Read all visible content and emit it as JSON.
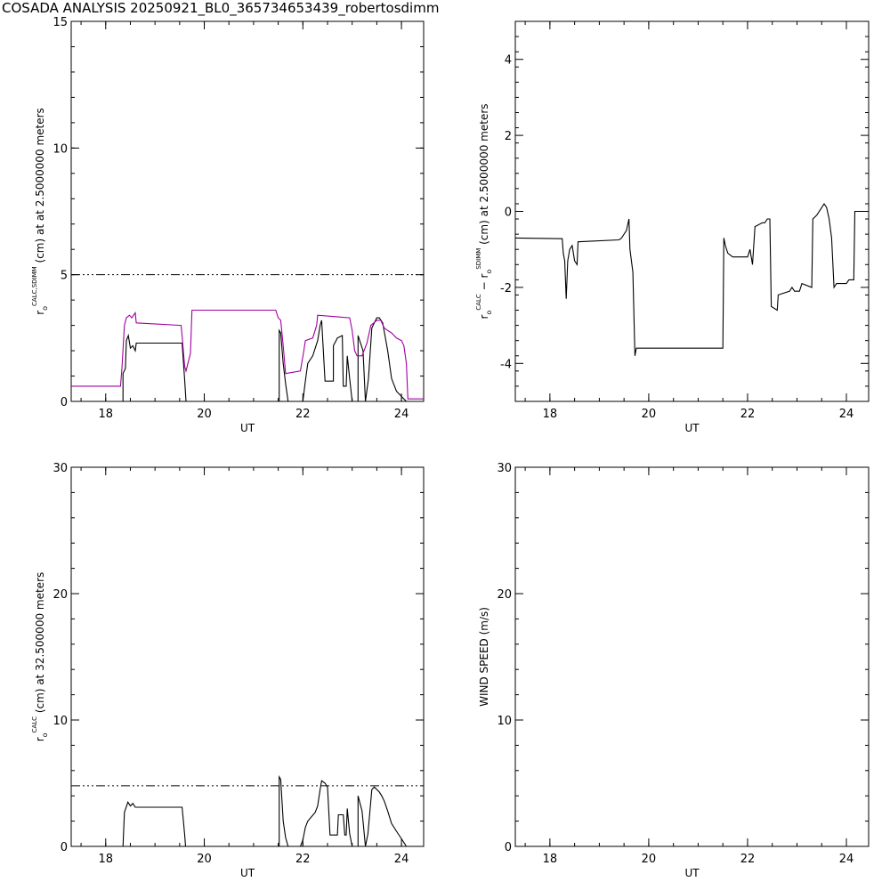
{
  "title": "COSADA ANALYSIS 20250921_BL0_365734653439_robertosdimm",
  "chart_data": [
    {
      "id": "p1",
      "type": "line",
      "xlabel": "UT",
      "ylabel_parts": [
        "r",
        "o",
        "CALC,SDIMM",
        "(cm) at  at 2.5000000 meters"
      ],
      "xlim": [
        17.3,
        24.45
      ],
      "ylim": [
        0,
        15
      ],
      "xticks": [
        18,
        20,
        22,
        24
      ],
      "yticks": [
        0,
        5,
        10,
        15
      ],
      "ref_line": 5,
      "series": [
        {
          "color": "#000000",
          "points": [
            [
              18.3,
              0
            ],
            [
              18.35,
              0
            ],
            [
              18.35,
              1.1
            ],
            [
              18.4,
              1.3
            ],
            [
              18.42,
              2.4
            ],
            [
              18.46,
              2.6
            ],
            [
              18.5,
              2.1
            ],
            [
              18.55,
              2.2
            ],
            [
              18.6,
              2.0
            ],
            [
              18.62,
              2.3
            ],
            [
              19.55,
              2.3
            ],
            [
              19.6,
              0.9
            ],
            [
              19.63,
              0
            ],
            [
              21.52,
              0
            ],
            [
              21.52,
              2.8
            ],
            [
              21.55,
              2.7
            ],
            [
              21.6,
              1.5
            ],
            [
              21.65,
              0.7
            ],
            [
              21.7,
              0
            ],
            [
              21.95,
              0
            ],
            [
              22.0,
              0
            ],
            [
              22.05,
              0.8
            ],
            [
              22.1,
              1.5
            ],
            [
              22.2,
              1.8
            ],
            [
              22.3,
              2.4
            ],
            [
              22.35,
              3.0
            ],
            [
              22.38,
              3.2
            ],
            [
              22.45,
              0.8
            ],
            [
              22.62,
              0.8
            ],
            [
              22.62,
              2.2
            ],
            [
              22.7,
              2.5
            ],
            [
              22.8,
              2.6
            ],
            [
              22.82,
              0.6
            ],
            [
              22.88,
              0.6
            ],
            [
              22.9,
              1.8
            ],
            [
              22.95,
              0.9
            ],
            [
              23.0,
              0
            ],
            [
              23.12,
              0
            ],
            [
              23.12,
              2.6
            ],
            [
              23.22,
              2.0
            ],
            [
              23.27,
              0
            ],
            [
              23.33,
              0.9
            ],
            [
              23.4,
              2.9
            ],
            [
              23.5,
              3.3
            ],
            [
              23.55,
              3.3
            ],
            [
              23.62,
              3.1
            ],
            [
              23.72,
              2.0
            ],
            [
              23.8,
              0.9
            ],
            [
              23.9,
              0.4
            ],
            [
              23.95,
              0.3
            ],
            [
              24.05,
              0.1
            ],
            [
              24.1,
              0
            ]
          ]
        },
        {
          "color": "#a000a0",
          "points": [
            [
              17.3,
              0.6
            ],
            [
              18.3,
              0.6
            ],
            [
              18.33,
              1.3
            ],
            [
              18.38,
              3.0
            ],
            [
              18.42,
              3.3
            ],
            [
              18.48,
              3.4
            ],
            [
              18.53,
              3.3
            ],
            [
              18.6,
              3.5
            ],
            [
              18.62,
              3.1
            ],
            [
              19.53,
              3.0
            ],
            [
              19.55,
              2.6
            ],
            [
              19.6,
              1.4
            ],
            [
              19.63,
              1.2
            ],
            [
              19.72,
              1.9
            ],
            [
              19.75,
              3.6
            ],
            [
              21.45,
              3.6
            ],
            [
              21.5,
              3.3
            ],
            [
              21.55,
              3.2
            ],
            [
              21.6,
              2.2
            ],
            [
              21.65,
              1.1
            ],
            [
              21.95,
              1.2
            ],
            [
              22.02,
              2.0
            ],
            [
              22.05,
              2.4
            ],
            [
              22.2,
              2.5
            ],
            [
              22.28,
              3.0
            ],
            [
              22.3,
              3.4
            ],
            [
              22.95,
              3.3
            ],
            [
              23.0,
              2.8
            ],
            [
              23.05,
              2.0
            ],
            [
              23.1,
              1.8
            ],
            [
              23.2,
              1.8
            ],
            [
              23.3,
              2.3
            ],
            [
              23.38,
              3.0
            ],
            [
              23.5,
              3.2
            ],
            [
              23.58,
              3.2
            ],
            [
              23.65,
              2.9
            ],
            [
              23.72,
              2.8
            ],
            [
              23.8,
              2.7
            ],
            [
              23.9,
              2.5
            ],
            [
              24.0,
              2.4
            ],
            [
              24.05,
              2.2
            ],
            [
              24.1,
              1.5
            ],
            [
              24.13,
              0.1
            ],
            [
              24.45,
              0.1
            ]
          ]
        }
      ]
    },
    {
      "id": "p2",
      "type": "line",
      "xlabel": "UT",
      "ylabel_parts": [
        "r",
        "o",
        "CALC",
        "− r",
        "o",
        "SDIMM",
        "(cm) at 2.5000000 meters"
      ],
      "xlim": [
        17.3,
        24.45
      ],
      "ylim": [
        -5,
        5
      ],
      "xticks": [
        18,
        20,
        22,
        24
      ],
      "yticks": [
        -4,
        -2,
        0,
        2,
        4
      ],
      "series": [
        {
          "color": "#000000",
          "points": [
            [
              17.3,
              -0.7
            ],
            [
              18.25,
              -0.72
            ],
            [
              18.27,
              -1.1
            ],
            [
              18.3,
              -1.3
            ],
            [
              18.33,
              -2.3
            ],
            [
              18.36,
              -1.3
            ],
            [
              18.4,
              -1.0
            ],
            [
              18.45,
              -0.9
            ],
            [
              18.5,
              -1.3
            ],
            [
              18.55,
              -1.4
            ],
            [
              18.57,
              -0.8
            ],
            [
              19.4,
              -0.75
            ],
            [
              19.45,
              -0.7
            ],
            [
              19.55,
              -0.5
            ],
            [
              19.6,
              -0.2
            ],
            [
              19.62,
              -1.0
            ],
            [
              19.68,
              -1.6
            ],
            [
              19.72,
              -3.8
            ],
            [
              19.75,
              -3.6
            ],
            [
              21.5,
              -3.6
            ],
            [
              21.52,
              -0.7
            ],
            [
              21.55,
              -0.9
            ],
            [
              21.6,
              -1.1
            ],
            [
              21.7,
              -1.2
            ],
            [
              22.0,
              -1.2
            ],
            [
              22.05,
              -1.0
            ],
            [
              22.1,
              -1.4
            ],
            [
              22.15,
              -0.4
            ],
            [
              22.3,
              -0.3
            ],
            [
              22.35,
              -0.3
            ],
            [
              22.4,
              -0.2
            ],
            [
              22.45,
              -0.2
            ],
            [
              22.48,
              -2.5
            ],
            [
              22.6,
              -2.6
            ],
            [
              22.62,
              -2.2
            ],
            [
              22.85,
              -2.1
            ],
            [
              22.9,
              -2.0
            ],
            [
              22.95,
              -2.1
            ],
            [
              23.05,
              -2.1
            ],
            [
              23.1,
              -1.9
            ],
            [
              23.3,
              -2.0
            ],
            [
              23.32,
              -0.2
            ],
            [
              23.4,
              -0.1
            ],
            [
              23.5,
              0.1
            ],
            [
              23.55,
              0.2
            ],
            [
              23.6,
              0.1
            ],
            [
              23.65,
              -0.2
            ],
            [
              23.7,
              -0.7
            ],
            [
              23.75,
              -2.0
            ],
            [
              23.8,
              -1.9
            ],
            [
              23.9,
              -1.9
            ],
            [
              24.0,
              -1.9
            ],
            [
              24.05,
              -1.8
            ],
            [
              24.15,
              -1.8
            ],
            [
              24.17,
              0.0
            ],
            [
              24.45,
              0.0
            ]
          ]
        }
      ]
    },
    {
      "id": "p3",
      "type": "line",
      "xlabel": "UT",
      "ylabel_parts": [
        "r",
        "o",
        "CALC",
        "(cm) at 32.500000 meters"
      ],
      "xlim": [
        17.3,
        24.45
      ],
      "ylim": [
        0,
        30
      ],
      "xticks": [
        18,
        20,
        22,
        24
      ],
      "yticks": [
        0,
        10,
        20,
        30
      ],
      "ref_line": 4.8,
      "series": [
        {
          "color": "#000000",
          "points": [
            [
              18.3,
              0
            ],
            [
              18.35,
              0
            ],
            [
              18.38,
              2.7
            ],
            [
              18.45,
              3.5
            ],
            [
              18.5,
              3.2
            ],
            [
              18.55,
              3.4
            ],
            [
              18.6,
              3.1
            ],
            [
              18.62,
              3.1
            ],
            [
              19.55,
              3.1
            ],
            [
              19.6,
              1.0
            ],
            [
              19.62,
              0
            ],
            [
              21.52,
              0
            ],
            [
              21.52,
              5.5
            ],
            [
              21.55,
              5.3
            ],
            [
              21.6,
              2.0
            ],
            [
              21.65,
              0.7
            ],
            [
              21.7,
              0
            ],
            [
              21.95,
              0
            ],
            [
              22.0,
              0.5
            ],
            [
              22.05,
              1.5
            ],
            [
              22.1,
              2.0
            ],
            [
              22.25,
              2.7
            ],
            [
              22.3,
              3.2
            ],
            [
              22.35,
              4.5
            ],
            [
              22.38,
              5.2
            ],
            [
              22.45,
              5.0
            ],
            [
              22.5,
              4.7
            ],
            [
              22.55,
              0.9
            ],
            [
              22.7,
              0.9
            ],
            [
              22.72,
              2.5
            ],
            [
              22.82,
              2.5
            ],
            [
              22.85,
              0.9
            ],
            [
              22.88,
              0.9
            ],
            [
              22.9,
              3.0
            ],
            [
              22.95,
              1.0
            ],
            [
              23.0,
              0
            ],
            [
              23.12,
              0
            ],
            [
              23.12,
              4.0
            ],
            [
              23.2,
              2.8
            ],
            [
              23.27,
              0
            ],
            [
              23.32,
              1.0
            ],
            [
              23.4,
              4.5
            ],
            [
              23.45,
              4.7
            ],
            [
              23.5,
              4.5
            ],
            [
              23.55,
              4.3
            ],
            [
              23.6,
              4.0
            ],
            [
              23.65,
              3.6
            ],
            [
              23.72,
              2.8
            ],
            [
              23.8,
              1.8
            ],
            [
              23.9,
              1.2
            ],
            [
              24.0,
              0.6
            ],
            [
              24.05,
              0.3
            ],
            [
              24.1,
              0
            ]
          ]
        }
      ]
    },
    {
      "id": "p4",
      "type": "line",
      "xlabel": "UT",
      "ylabel_parts": [
        "WIND SPEED (m/s)"
      ],
      "xlim": [
        17.3,
        24.45
      ],
      "ylim": [
        0,
        30
      ],
      "xticks": [
        18,
        20,
        22,
        24
      ],
      "yticks": [
        0,
        10,
        20,
        30
      ],
      "series": []
    }
  ]
}
